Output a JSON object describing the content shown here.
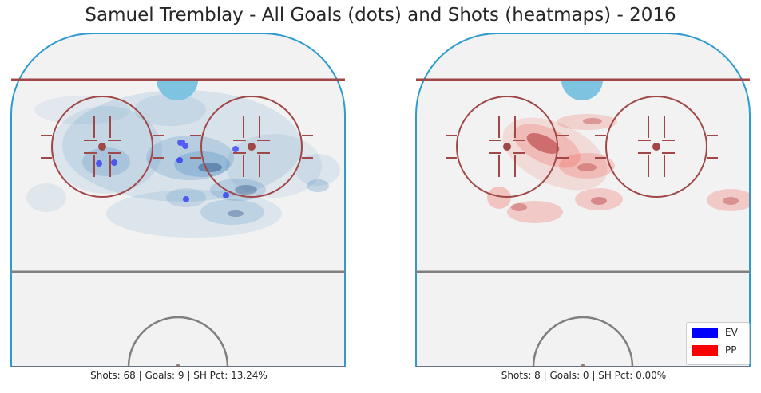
{
  "title": "Samuel Tremblay - All Goals (dots) and Shots (heatmaps) - 2016",
  "colors": {
    "ev": "#0000ff",
    "pp": "#ff0000",
    "board": "#2e9bcf",
    "goal_line": "#a04747",
    "blue_line": "#808080",
    "ice": "#f2f2f2",
    "crease": "#7ec4e0"
  },
  "legend": {
    "ev_label": "EV",
    "pp_label": "PP"
  },
  "chart_data": [
    {
      "type": "scatter",
      "series": [
        {
          "name": "EV",
          "stats_text": "Shots: 68 | Goals: 9 | SH Pct: 13.24%",
          "shots": 68,
          "goals": 9,
          "shooting_pct": 13.24
        }
      ]
    },
    {
      "type": "heatmap",
      "series": [
        {
          "name": "PP",
          "stats_text": "Shots: 8 | Goals: 0 | SH Pct: 0.00%",
          "shots": 8,
          "goals": 0,
          "shooting_pct": 0.0
        }
      ]
    }
  ]
}
